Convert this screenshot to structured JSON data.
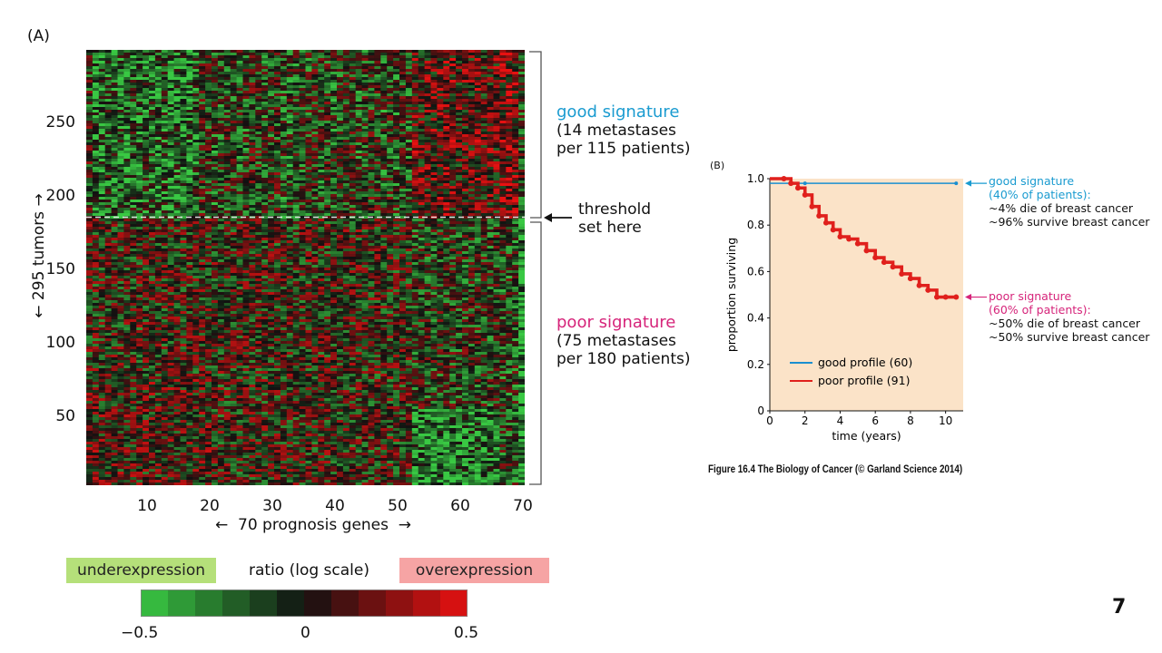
{
  "panel_a": {
    "label": "(A)",
    "ylabel": "295 tumors",
    "xlabel": "70 prognosis genes",
    "yticks": [
      "250",
      "200",
      "150",
      "100",
      "50"
    ],
    "xticks": [
      "10",
      "20",
      "30",
      "40",
      "50",
      "60",
      "70"
    ],
    "good_signature": {
      "title": "good signature",
      "line1": "(14 metastases",
      "line2": "per 115 patients)"
    },
    "poor_signature": {
      "title": "poor signature",
      "line1": "(75 metastases",
      "line2": "per 180 patients)"
    },
    "threshold": {
      "line1": "threshold",
      "line2": "set here"
    },
    "legend": {
      "under": "underexpression",
      "ratio": "ratio (log scale)",
      "over": "overexpression"
    },
    "colorbar_ticks": [
      "−0.5",
      "0",
      "0.5"
    ]
  },
  "panel_b": {
    "label": "(B)",
    "good_note": {
      "title": "good signature",
      "pct": "(40% of patients):",
      "line1": "~4% die of breast cancer",
      "line2": "~96% survive breast cancer"
    },
    "poor_note": {
      "title": "poor signature",
      "pct": "(60% of patients):",
      "line1": "~50% die of breast cancer",
      "line2": "~50% survive breast cancer"
    }
  },
  "footer": "Figure 16.4 The Biology of Cancer (© Garland Science 2014)",
  "page_number": "7",
  "colors": {
    "good": "#1a9bd0",
    "poor": "#d6247a",
    "curve_good": "#1a8fd0",
    "curve_poor": "#e0201c",
    "plot_bg": "#fbe3c8"
  },
  "chart_data": [
    {
      "type": "heatmap",
      "xlabel": "70 prognosis genes",
      "ylabel": "295 tumors",
      "xlim": [
        1,
        70
      ],
      "ylim": [
        1,
        295
      ],
      "threshold_row": 182,
      "color_scale": {
        "min": -0.5,
        "mid": 0,
        "max": 0.5,
        "low_color": "#46c846",
        "mid_color": "#111111",
        "high_color": "#e81010"
      }
    },
    {
      "type": "line",
      "xlabel": "time (years)",
      "ylabel": "proportion surviving",
      "xlim": [
        0,
        11
      ],
      "ylim": [
        0,
        1.0
      ],
      "xticks": [
        "0",
        "2",
        "4",
        "6",
        "8",
        "10"
      ],
      "yticks": [
        "0",
        "0.2",
        "0.4",
        "0.6",
        "0.8",
        "1.0"
      ],
      "series": [
        {
          "name": "good profile (60)",
          "x": [
            0,
            2,
            10.6
          ],
          "values": [
            0.98,
            0.98,
            0.98
          ]
        },
        {
          "name": "poor profile (91)",
          "x": [
            0,
            0.8,
            1.2,
            1.6,
            2.0,
            2.4,
            2.8,
            3.2,
            3.6,
            4.0,
            4.5,
            5.0,
            5.5,
            6.0,
            6.5,
            7.0,
            7.5,
            8.0,
            8.5,
            9.0,
            9.5,
            10.0,
            10.6
          ],
          "values": [
            1.0,
            1.0,
            0.98,
            0.96,
            0.93,
            0.88,
            0.84,
            0.81,
            0.78,
            0.75,
            0.74,
            0.72,
            0.69,
            0.66,
            0.64,
            0.62,
            0.59,
            0.57,
            0.54,
            0.52,
            0.49,
            0.49,
            0.49
          ]
        }
      ]
    }
  ]
}
